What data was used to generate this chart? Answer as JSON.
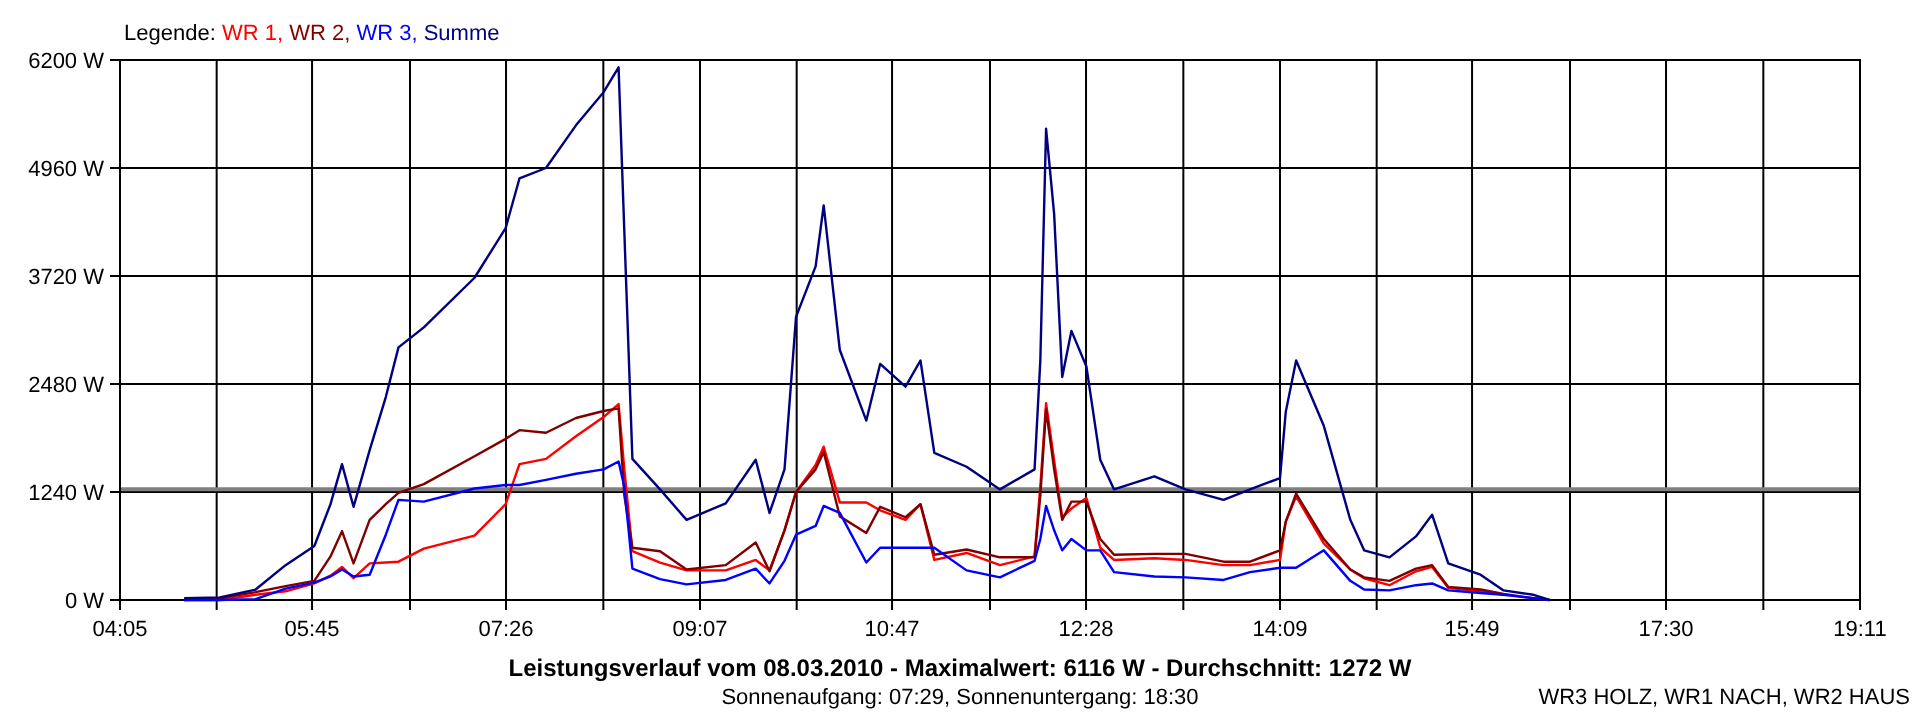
{
  "chart_data": {
    "type": "line",
    "title": "Leistungsverlauf vom 08.03.2010 - Maximalwert: 6116 W - Durchschnitt: 1272 W",
    "subtitle": "Sonnenaufgang: 07:29, Sonnenuntergang: 18:30",
    "legend_title": "Legende:",
    "annotations": [
      "WR3 HOLZ, WR1 NACH, WR2 HAUS"
    ],
    "x": [
      4.64,
      4.95,
      5.26,
      5.52,
      5.77,
      5.91,
      6.01,
      6.11,
      6.25,
      6.39,
      6.5,
      6.72,
      7.16,
      7.43,
      7.55,
      7.78,
      8.04,
      8.28,
      8.41,
      8.46,
      8.53,
      8.77,
      9.0,
      9.34,
      9.6,
      9.72,
      9.85,
      9.95,
      10.12,
      10.19,
      10.33,
      10.56,
      10.68,
      10.9,
      11.03,
      11.15,
      11.43,
      11.72,
      12.02,
      12.07,
      12.12,
      12.19,
      12.26,
      12.34,
      12.47,
      12.59,
      12.71,
      13.06,
      13.33,
      13.66,
      13.89,
      14.15,
      14.2,
      14.29,
      14.53,
      14.76,
      14.88,
      15.1,
      15.33,
      15.47,
      15.61,
      15.89,
      16.09,
      16.35,
      16.49
    ],
    "series": [
      {
        "name": "WR 1,",
        "color": "#ff0000",
        "values": [
          0,
          0,
          60,
          100,
          190,
          280,
          380,
          250,
          420,
          430,
          440,
          590,
          740,
          1100,
          1560,
          1620,
          1880,
          2100,
          2250,
          1500,
          560,
          430,
          340,
          340,
          460,
          340,
          800,
          1240,
          1550,
          1760,
          1120,
          1120,
          1030,
          920,
          1100,
          460,
          540,
          400,
          500,
          1300,
          2260,
          1600,
          950,
          1050,
          1170,
          600,
          460,
          480,
          460,
          400,
          400,
          460,
          900,
          1190,
          650,
          350,
          250,
          170,
          330,
          380,
          140,
          100,
          60,
          null,
          null
        ]
      },
      {
        "name": "WR 2,",
        "color": "#800000",
        "values": [
          0,
          20,
          90,
          160,
          220,
          500,
          790,
          420,
          920,
          1100,
          1230,
          1330,
          1650,
          1850,
          1950,
          1920,
          2090,
          2170,
          2200,
          1200,
          600,
          560,
          350,
          400,
          660,
          330,
          800,
          1240,
          1500,
          1700,
          960,
          770,
          1070,
          950,
          1100,
          520,
          580,
          490,
          490,
          1200,
          2190,
          1500,
          920,
          1130,
          1130,
          700,
          520,
          530,
          530,
          440,
          440,
          570,
          900,
          1220,
          700,
          350,
          260,
          220,
          360,
          400,
          150,
          120,
          70,
          20,
          0
        ]
      },
      {
        "name": "WR 3,",
        "color": "#0000ff",
        "values": [
          0,
          0,
          10,
          130,
          200,
          270,
          350,
          270,
          290,
          750,
          1150,
          1130,
          1280,
          1320,
          1320,
          1380,
          1450,
          1500,
          1590,
          1300,
          360,
          240,
          180,
          230,
          360,
          190,
          450,
          750,
          850,
          1080,
          1000,
          430,
          600,
          600,
          600,
          600,
          340,
          260,
          450,
          700,
          1080,
          800,
          570,
          700,
          570,
          570,
          320,
          270,
          260,
          230,
          320,
          370,
          370,
          370,
          570,
          220,
          120,
          110,
          170,
          190,
          110,
          80,
          60,
          20,
          0
        ]
      },
      {
        "name": "Summe",
        "color": "#000080",
        "values": [
          20,
          30,
          120,
          400,
          620,
          1100,
          1560,
          1070,
          1720,
          2330,
          2900,
          3130,
          3700,
          4270,
          4840,
          4960,
          5450,
          5830,
          6116,
          4230,
          1620,
          1270,
          920,
          1110,
          1610,
          1000,
          1500,
          3250,
          3830,
          4530,
          2870,
          2060,
          2710,
          2450,
          2750,
          1690,
          1530,
          1270,
          1500,
          2750,
          5410,
          4430,
          2560,
          3090,
          2680,
          1610,
          1270,
          1420,
          1270,
          1150,
          1270,
          1400,
          2160,
          2750,
          2000,
          920,
          570,
          490,
          730,
          980,
          420,
          290,
          110,
          60,
          0
        ]
      }
    ],
    "xlim": [
      4.0833,
      19.1833
    ],
    "xticks": [
      {
        "value": 4.0833,
        "label": "04:05"
      },
      {
        "value": 4.9222,
        "label": null
      },
      {
        "value": 5.75,
        "label": "05:45"
      },
      {
        "value": 6.6,
        "label": null
      },
      {
        "value": 7.4333,
        "label": "07:26"
      },
      {
        "value": 8.2778,
        "label": null
      },
      {
        "value": 9.1167,
        "label": "09:07"
      },
      {
        "value": 9.9556,
        "label": null
      },
      {
        "value": 10.7833,
        "label": "10:47"
      },
      {
        "value": 11.6333,
        "label": null
      },
      {
        "value": 12.4667,
        "label": "12:28"
      },
      {
        "value": 13.3111,
        "label": null
      },
      {
        "value": 14.15,
        "label": "14:09"
      },
      {
        "value": 14.9889,
        "label": null
      },
      {
        "value": 15.8167,
        "label": "15:49"
      },
      {
        "value": 16.6667,
        "label": null
      },
      {
        "value": 17.5,
        "label": "17:30"
      },
      {
        "value": 18.3444,
        "label": null
      },
      {
        "value": 19.1833,
        "label": "19:11"
      }
    ],
    "ylim": [
      0,
      6200
    ],
    "yticks": [
      {
        "value": 0,
        "label": "0 W"
      },
      {
        "value": 1240,
        "label": "1240 W"
      },
      {
        "value": 2480,
        "label": "2480 W"
      },
      {
        "value": 3720,
        "label": "3720 W"
      },
      {
        "value": 4960,
        "label": "4960 W"
      },
      {
        "value": 6200,
        "label": "6200 W"
      }
    ],
    "ref_lines": [
      {
        "axis": "y",
        "value": 1272,
        "color": "#808080"
      }
    ],
    "grid": true,
    "legend": "top left",
    "marker": "none",
    "line_style": "solid"
  }
}
